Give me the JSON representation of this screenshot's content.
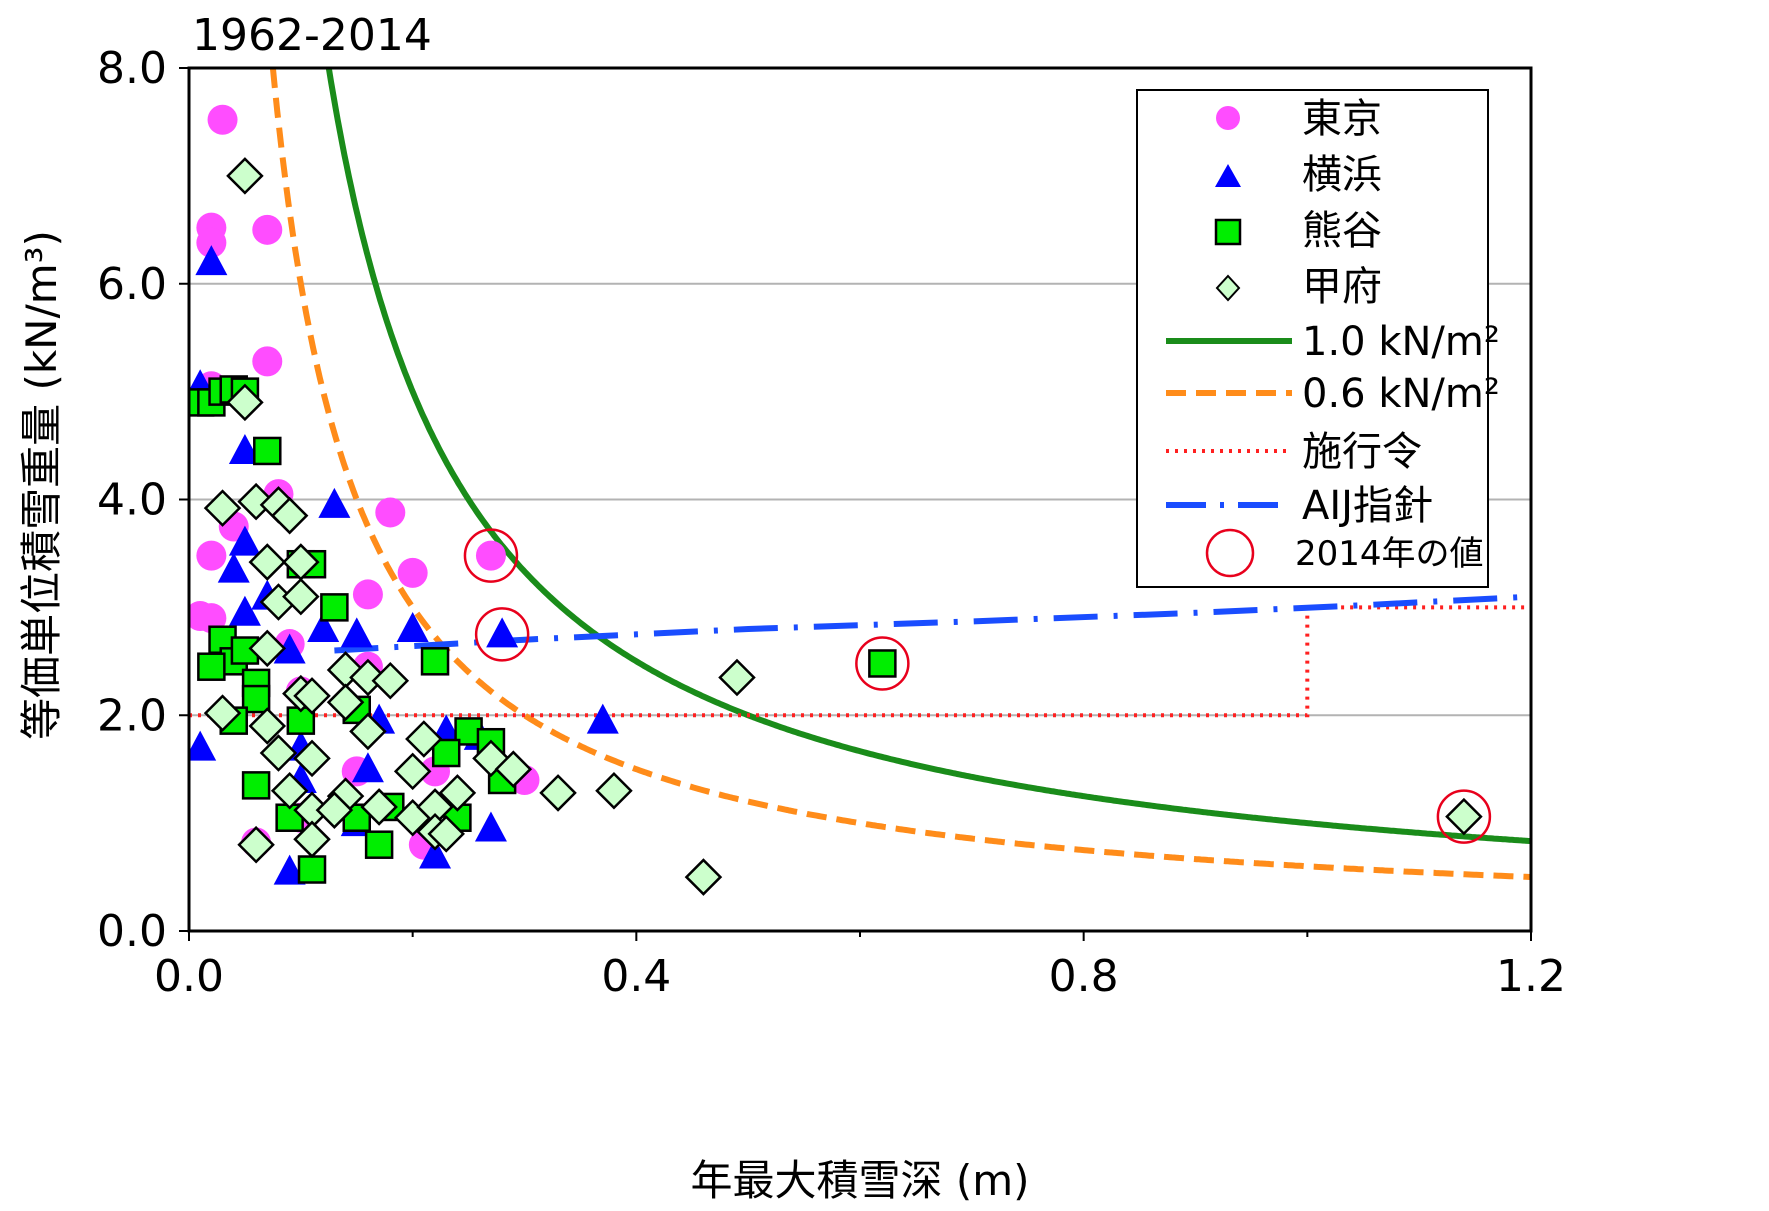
{
  "chart_data": {
    "type": "scatter",
    "title": "1962-2014",
    "xlabel": "年最大積雪深 (m)",
    "ylabel": "等価単位積雪重量 (kN/m³)",
    "xlim": [
      0,
      1.2
    ],
    "ylim": [
      0,
      8.0
    ],
    "xticks": [
      "0.0",
      "0.4",
      "0.8",
      "1.2"
    ],
    "yticks": [
      "0.0",
      "2.0",
      "4.0",
      "6.0",
      "8.0"
    ],
    "grid": "horizontal",
    "legend_position": "top-right",
    "series": [
      {
        "name": "東京",
        "marker": "circle",
        "color": "#ff4dff",
        "points": [
          [
            0.03,
            7.52
          ],
          [
            0.02,
            6.52
          ],
          [
            0.07,
            6.5
          ],
          [
            0.02,
            6.38
          ],
          [
            0.07,
            5.28
          ],
          [
            0.02,
            5.05
          ],
          [
            0.08,
            4.05
          ],
          [
            0.04,
            3.75
          ],
          [
            0.18,
            3.88
          ],
          [
            0.2,
            3.32
          ],
          [
            0.02,
            3.48
          ],
          [
            0.16,
            3.12
          ],
          [
            0.01,
            2.92
          ],
          [
            0.02,
            2.9
          ],
          [
            0.09,
            2.66
          ],
          [
            0.1,
            2.22
          ],
          [
            0.16,
            2.45
          ],
          [
            0.15,
            1.48
          ],
          [
            0.1,
            1.05
          ],
          [
            0.22,
            1.48
          ],
          [
            0.06,
            0.82
          ],
          [
            0.21,
            0.8
          ],
          [
            0.3,
            1.4
          ],
          [
            0.27,
            3.48
          ]
        ]
      },
      {
        "name": "横浜",
        "marker": "triangle",
        "color": "#0000ff",
        "points": [
          [
            0.02,
            6.2
          ],
          [
            0.01,
            5.05
          ],
          [
            0.05,
            4.45
          ],
          [
            0.05,
            3.6
          ],
          [
            0.04,
            3.35
          ],
          [
            0.05,
            2.95
          ],
          [
            0.07,
            3.1
          ],
          [
            0.13,
            3.95
          ],
          [
            0.12,
            2.8
          ],
          [
            0.15,
            2.75
          ],
          [
            0.2,
            2.8
          ],
          [
            0.09,
            2.6
          ],
          [
            0.01,
            1.7
          ],
          [
            0.17,
            1.95
          ],
          [
            0.1,
            1.7
          ],
          [
            0.1,
            1.4
          ],
          [
            0.16,
            1.5
          ],
          [
            0.23,
            1.85
          ],
          [
            0.26,
            1.8
          ],
          [
            0.37,
            1.95
          ],
          [
            0.15,
            1.0
          ],
          [
            0.22,
            0.7
          ],
          [
            0.09,
            0.55
          ],
          [
            0.27,
            0.95
          ],
          [
            0.28,
            2.75
          ]
        ]
      },
      {
        "name": "熊谷",
        "marker": "square",
        "color": "#00ee00",
        "points": [
          [
            0.01,
            4.9
          ],
          [
            0.02,
            4.9
          ],
          [
            0.03,
            5.0
          ],
          [
            0.04,
            5.02
          ],
          [
            0.05,
            5.0
          ],
          [
            0.07,
            4.45
          ],
          [
            0.1,
            3.4
          ],
          [
            0.11,
            3.4
          ],
          [
            0.13,
            3.0
          ],
          [
            0.03,
            2.7
          ],
          [
            0.04,
            2.5
          ],
          [
            0.02,
            2.45
          ],
          [
            0.05,
            2.6
          ],
          [
            0.06,
            2.3
          ],
          [
            0.06,
            2.15
          ],
          [
            0.1,
            1.95
          ],
          [
            0.04,
            1.95
          ],
          [
            0.22,
            2.5
          ],
          [
            0.15,
            2.05
          ],
          [
            0.25,
            1.85
          ],
          [
            0.27,
            1.75
          ],
          [
            0.23,
            1.65
          ],
          [
            0.28,
            1.4
          ],
          [
            0.06,
            1.35
          ],
          [
            0.09,
            1.05
          ],
          [
            0.11,
            0.57
          ],
          [
            0.17,
            0.8
          ],
          [
            0.15,
            1.05
          ],
          [
            0.18,
            1.15
          ],
          [
            0.24,
            1.05
          ],
          [
            0.62,
            2.48
          ]
        ]
      },
      {
        "name": "甲府",
        "marker": "diamond",
        "color": "#ccffcc",
        "points": [
          [
            0.05,
            7.0
          ],
          [
            0.05,
            4.9
          ],
          [
            0.03,
            3.92
          ],
          [
            0.06,
            3.98
          ],
          [
            0.08,
            3.95
          ],
          [
            0.09,
            3.85
          ],
          [
            0.07,
            3.42
          ],
          [
            0.1,
            3.42
          ],
          [
            0.08,
            3.05
          ],
          [
            0.1,
            3.1
          ],
          [
            0.07,
            2.62
          ],
          [
            0.14,
            2.42
          ],
          [
            0.16,
            2.35
          ],
          [
            0.18,
            2.32
          ],
          [
            0.1,
            2.2
          ],
          [
            0.11,
            2.18
          ],
          [
            0.14,
            2.12
          ],
          [
            0.03,
            2.02
          ],
          [
            0.07,
            1.9
          ],
          [
            0.16,
            1.85
          ],
          [
            0.21,
            1.78
          ],
          [
            0.08,
            1.65
          ],
          [
            0.11,
            1.6
          ],
          [
            0.27,
            1.6
          ],
          [
            0.29,
            1.5
          ],
          [
            0.2,
            1.48
          ],
          [
            0.09,
            1.3
          ],
          [
            0.14,
            1.25
          ],
          [
            0.24,
            1.28
          ],
          [
            0.11,
            1.12
          ],
          [
            0.13,
            1.12
          ],
          [
            0.17,
            1.15
          ],
          [
            0.2,
            1.05
          ],
          [
            0.22,
            1.15
          ],
          [
            0.11,
            0.85
          ],
          [
            0.22,
            0.92
          ],
          [
            0.23,
            0.9
          ],
          [
            0.06,
            0.8
          ],
          [
            0.33,
            1.28
          ],
          [
            0.38,
            1.3
          ],
          [
            0.49,
            2.35
          ],
          [
            0.46,
            0.5
          ],
          [
            1.14,
            1.06
          ]
        ]
      },
      {
        "name": "1.0 kN/m²",
        "type": "line",
        "style": "solid",
        "color": "#1a8c1a",
        "formula": "y = 1.0 / x"
      },
      {
        "name": "0.6 kN/m²",
        "type": "line",
        "style": "dashed",
        "color": "#ff8c1a",
        "formula": "y = 0.6 / x"
      },
      {
        "name": "施行令",
        "type": "line",
        "style": "dotted",
        "color": "#ff2020",
        "points": [
          [
            0.0,
            2.0
          ],
          [
            1.0,
            2.0
          ],
          [
            1.0,
            3.0
          ],
          [
            1.2,
            3.0
          ]
        ]
      },
      {
        "name": "AIJ指針",
        "type": "line",
        "style": "dash-dot",
        "color": "#1a4dff",
        "points": [
          [
            0.13,
            2.6
          ],
          [
            0.3,
            2.7
          ],
          [
            0.5,
            2.8
          ],
          [
            0.7,
            2.87
          ],
          [
            0.9,
            2.95
          ],
          [
            1.05,
            3.02
          ],
          [
            1.2,
            3.1
          ]
        ]
      }
    ],
    "highlight": {
      "name": "2014年の値",
      "color": "#e8001c",
      "points": [
        [
          0.27,
          3.48
        ],
        [
          0.28,
          2.75
        ],
        [
          0.62,
          2.48
        ],
        [
          1.14,
          1.06
        ]
      ]
    }
  },
  "legend": [
    {
      "key": "tokyo",
      "label": "東京"
    },
    {
      "key": "yokohama",
      "label": "横浜"
    },
    {
      "key": "kumagaya",
      "label": "熊谷"
    },
    {
      "key": "kofu",
      "label": "甲府"
    },
    {
      "key": "line10",
      "label": "1.0 kN/m²"
    },
    {
      "key": "line06",
      "label": "0.6 kN/m²"
    },
    {
      "key": "sekourei",
      "label": "施行令"
    },
    {
      "key": "aij",
      "label": "AIJ指針"
    },
    {
      "key": "y2014",
      "label": "2014年の値"
    }
  ]
}
